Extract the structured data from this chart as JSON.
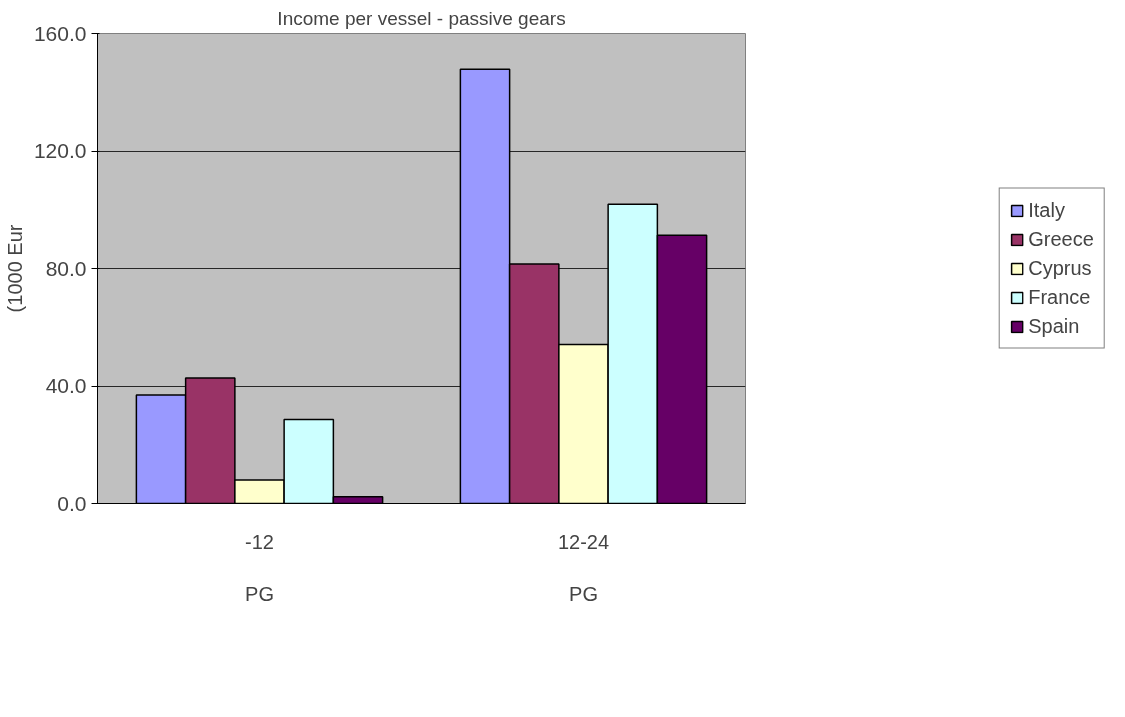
{
  "chart_data": {
    "type": "bar",
    "title": "Income per vessel - passive gears",
    "ylabel": "(1000 Eur",
    "categories": [
      "-12",
      "12-24"
    ],
    "series": [
      {
        "name": "Italy",
        "color": "#9999ff",
        "values": [
          36.9,
          147.8
        ]
      },
      {
        "name": "Greece",
        "color": "#993366",
        "values": [
          42.7,
          81.5
        ]
      },
      {
        "name": "Cyprus",
        "color": "#ffffcc",
        "values": [
          8.0,
          54.1
        ]
      },
      {
        "name": "France",
        "color": "#ccffff",
        "values": [
          28.6,
          101.9
        ]
      },
      {
        "name": "Spain",
        "color": "#660066",
        "values": [
          2.3,
          91.3
        ]
      }
    ],
    "annotations": [
      "PG",
      "PG"
    ],
    "ylim": [
      0,
      160
    ],
    "yticks": [
      {
        "value": 0,
        "label": "0.0"
      },
      {
        "value": 40,
        "label": "40.0"
      },
      {
        "value": 80,
        "label": "80.0"
      },
      {
        "value": 120,
        "label": "120.0"
      },
      {
        "value": 160,
        "label": "160.0"
      }
    ],
    "grid": "y",
    "legend": "right"
  }
}
